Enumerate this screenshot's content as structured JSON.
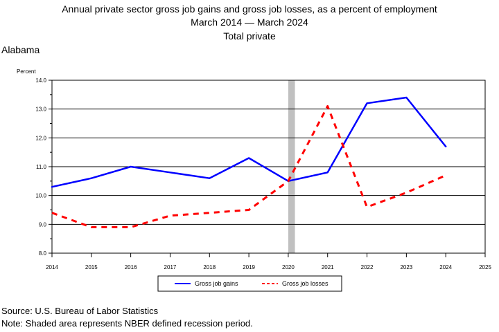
{
  "header": {
    "title_line1": "Annual private sector gross job gains and gross job losses, as a percent of employment",
    "title_line2": "March 2014 — March 2024",
    "title_line3": "Total private"
  },
  "region": "Alabama",
  "footer": {
    "source": "Source: U.S. Bureau of Labor Statistics",
    "note": "Note: Shaded area represents NBER defined recession period."
  },
  "chart_data": {
    "type": "line",
    "ylabel": "Percent",
    "xlabel": "",
    "xlim": [
      2014,
      2025
    ],
    "ylim": [
      8.0,
      14.0
    ],
    "x_ticks": [
      "2014",
      "2015",
      "2016",
      "2017",
      "2018",
      "2019",
      "2020",
      "2021",
      "2022",
      "2023",
      "2024",
      "2025"
    ],
    "y_ticks": [
      "8.0",
      "9.0",
      "10.0",
      "11.0",
      "12.0",
      "13.0",
      "14.0"
    ],
    "grid": "horizontal",
    "legend_position": "bottom-center",
    "recession_band": [
      2020.0,
      2020.17
    ],
    "series": [
      {
        "name": "Gross job gains",
        "color": "#0000ff",
        "style": "solid",
        "x": [
          2014,
          2015,
          2016,
          2017,
          2018,
          2019,
          2020,
          2021,
          2022,
          2023,
          2024
        ],
        "values": [
          10.3,
          10.6,
          11.0,
          10.8,
          10.6,
          11.3,
          10.5,
          10.8,
          13.2,
          13.4,
          11.7
        ]
      },
      {
        "name": "Gross job losses",
        "color": "#ff0000",
        "style": "dashed",
        "x": [
          2014,
          2015,
          2016,
          2017,
          2018,
          2019,
          2020,
          2021,
          2022,
          2023,
          2024
        ],
        "values": [
          9.4,
          8.9,
          8.9,
          9.3,
          9.4,
          9.5,
          10.5,
          13.1,
          9.6,
          10.1,
          10.7
        ]
      }
    ]
  }
}
